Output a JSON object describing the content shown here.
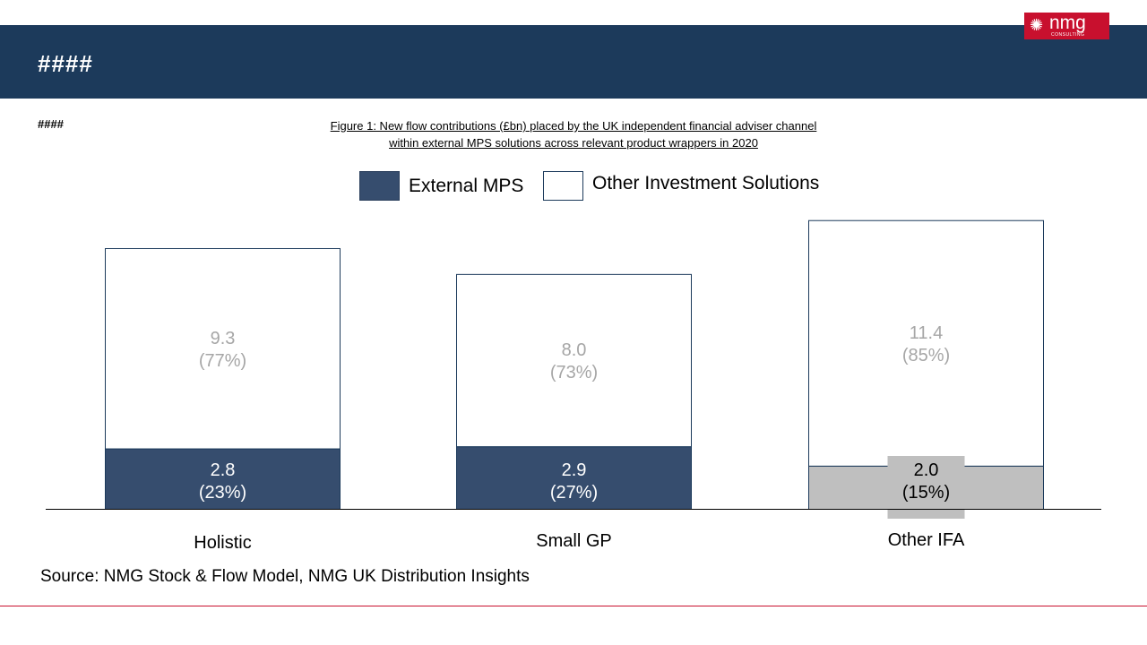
{
  "header": {
    "title": "####"
  },
  "logo": {
    "text": "nmg",
    "subtext": "CONSULTING"
  },
  "subheading": "####",
  "figure_title": {
    "line1": "Figure 1: New flow contributions  (£bn) placed by the UK independent  financial adviser channel",
    "line2": "within external MPS solutions across relevant product  wrappers in 2020"
  },
  "legend": [
    {
      "label": "External MPS",
      "color": "#364d6e"
    },
    {
      "label": "Other Investment Solutions",
      "color": "#ffffff"
    }
  ],
  "source": "Source: NMG Stock & Flow Model, NMG UK Distribution Insights",
  "colors": {
    "header": "#1c3a5b",
    "brand": "#c8102e",
    "external_mps": "#364d6e",
    "highlight": "#bfbfbf",
    "other_label": "#a6a6a6"
  },
  "chart_data": {
    "type": "bar",
    "stacked": true,
    "categories": [
      "Holistic",
      "Small GP",
      "Other IFA"
    ],
    "series": [
      {
        "name": "External MPS",
        "values": [
          2.8,
          2.9,
          2.0
        ],
        "labels": [
          "2.8",
          "2.9",
          "2.0"
        ],
        "shares": [
          "(23%)",
          "(27%)",
          "(15%)"
        ]
      },
      {
        "name": "Other Investment Solutions",
        "values": [
          9.3,
          8.0,
          11.4
        ],
        "labels": [
          "9.3",
          "8.0",
          "11.4"
        ],
        "shares": [
          "(77%)",
          "(73%)",
          "(85%)"
        ]
      }
    ],
    "highlighted_category": "Other IFA",
    "title": "Figure 1: New flow contributions  (£bn) placed by the UK independent  financial adviser channel within external MPS solutions across relevant product  wrappers in 2020",
    "legend_position": "top"
  }
}
